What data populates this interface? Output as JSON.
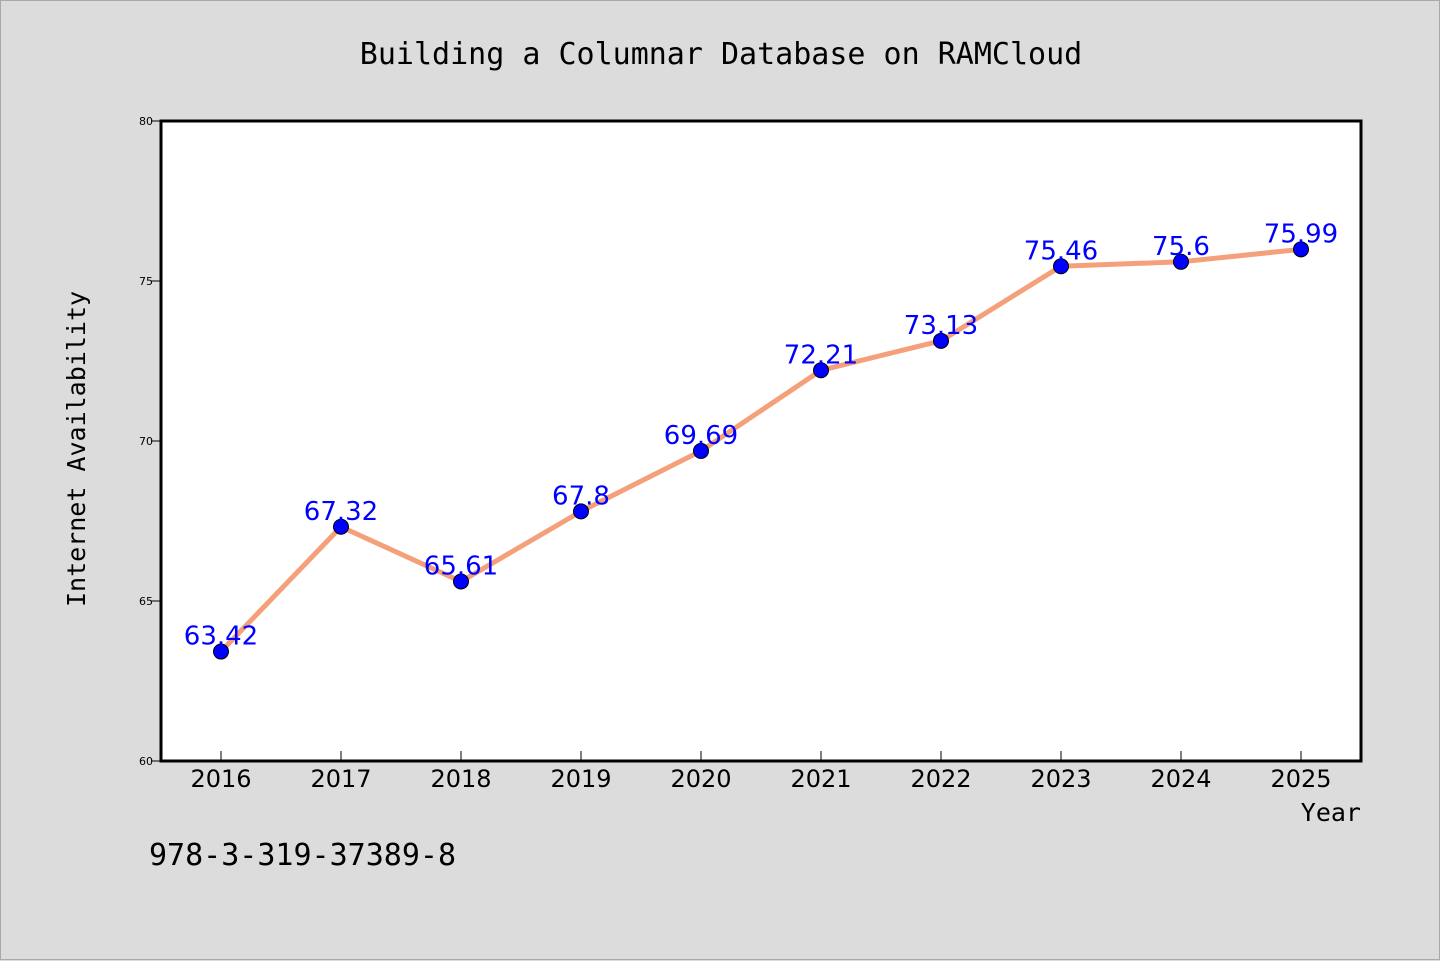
{
  "chart_data": {
    "type": "line",
    "title": "Building a Columnar Database on RAMCloud",
    "xlabel": "Year",
    "ylabel": "Internet Availability",
    "categories": [
      "2016",
      "2017",
      "2018",
      "2019",
      "2020",
      "2021",
      "2022",
      "2023",
      "2024",
      "2025"
    ],
    "series": [
      {
        "values": [
          63.42,
          67.32,
          65.61,
          67.8,
          69.69,
          72.21,
          73.13,
          75.46,
          75.6,
          75.99
        ],
        "labels": [
          "63.42",
          "67.32",
          "65.61",
          "67.8",
          "69.69",
          "72.21",
          "73.13",
          "75.46",
          "75.6",
          "75.99"
        ],
        "line_color": "#f4a07a",
        "marker_color": "#0000ff"
      }
    ],
    "ylim": [
      60,
      80
    ],
    "yticks": [
      60,
      65,
      70,
      75,
      80
    ],
    "ytick_labels": [
      "60",
      "65",
      "70",
      "75",
      "80"
    ],
    "grid": false,
    "legend": "none"
  },
  "caption": "978-3-319-37389-8",
  "colors": {
    "background": "#dcdcdc",
    "plot_background": "#ffffff",
    "line": "#f4a07a",
    "marker": "#0000ff",
    "data_label": "#0000ff"
  }
}
